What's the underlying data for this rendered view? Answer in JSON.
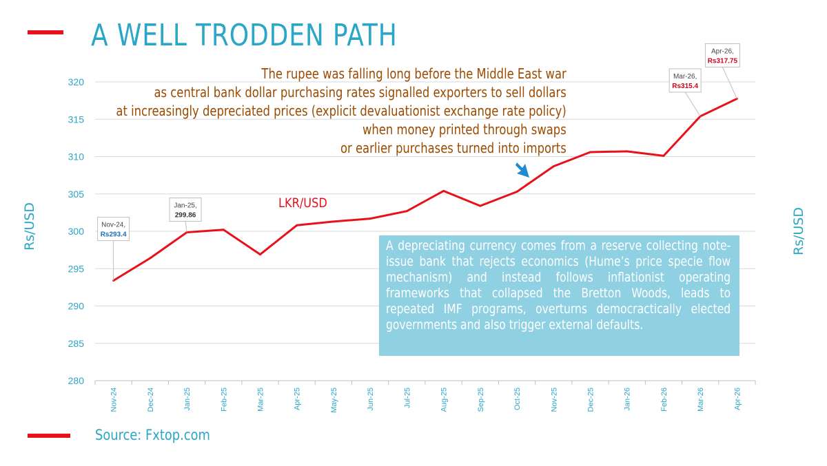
{
  "title": "A WELL TRODDEN PATH",
  "note_lines": [
    "The rupee was falling long before the Middle East war",
    "as central bank dollar purchasing rates signalled exporters to sell dollars",
    "at increasingly depreciated prices (explicit devaluationist exchange rate policy)",
    "when money printed through swaps",
    "or earlier purchases turned into imports"
  ],
  "info_box": "A depreciating currency comes from a reserve collecting note-issue bank that rejects economics (Hume’s price specie flow mechanism) and instead follows inflationist operating frameworks that collapsed the Bretton Woods, leads to repeated IMF programs, overturns democractically elected governments and also trigger external defaults.",
  "source": "Source: Fxtop.com",
  "colors": {
    "accent": "#e8111a",
    "title": "#2aa6c6",
    "note": "#9b4a00",
    "box": "#8fd0e2",
    "axis_text": "#2aa6c6"
  },
  "chart_data": {
    "type": "line",
    "ylabel_left": "Rs/USD",
    "ylabel_right": "Rs/USD",
    "ylim": [
      280,
      320
    ],
    "yticks": [
      280,
      285,
      290,
      295,
      300,
      305,
      310,
      315,
      320
    ],
    "grid": true,
    "categories": [
      "Nov-24",
      "Dec-24",
      "Jan-25",
      "Feb-25",
      "Mar-25",
      "Apr-25",
      "May-25",
      "Jun-25",
      "Jul-25",
      "Aug-25",
      "Sep-25",
      "Oct-25",
      "Nov-25",
      "Dec-25",
      "Jan-26",
      "Feb-26",
      "Mar-26",
      "Apr-26"
    ],
    "series": [
      {
        "name": "LKR/USD",
        "color": "#e8111a",
        "values": [
          293.4,
          296.4,
          299.86,
          300.2,
          296.9,
          300.8,
          301.3,
          301.7,
          302.7,
          305.4,
          303.4,
          305.3,
          308.7,
          310.6,
          310.7,
          310.1,
          315.4,
          317.75
        ]
      }
    ],
    "annotations": [
      {
        "index": 0,
        "date": "Nov-24,",
        "value": "Rs293.4",
        "value_color": "#1f6fb4"
      },
      {
        "index": 2,
        "date": "Jan-25,",
        "value": "299.86",
        "value_color": "#333333"
      },
      {
        "index": 16,
        "date": "Mar-26,",
        "value": "Rs315.4",
        "value_color": "#d0021b"
      },
      {
        "index": 17,
        "date": "Apr-26,",
        "value": "Rs317.75",
        "value_color": "#d0021b"
      }
    ]
  }
}
